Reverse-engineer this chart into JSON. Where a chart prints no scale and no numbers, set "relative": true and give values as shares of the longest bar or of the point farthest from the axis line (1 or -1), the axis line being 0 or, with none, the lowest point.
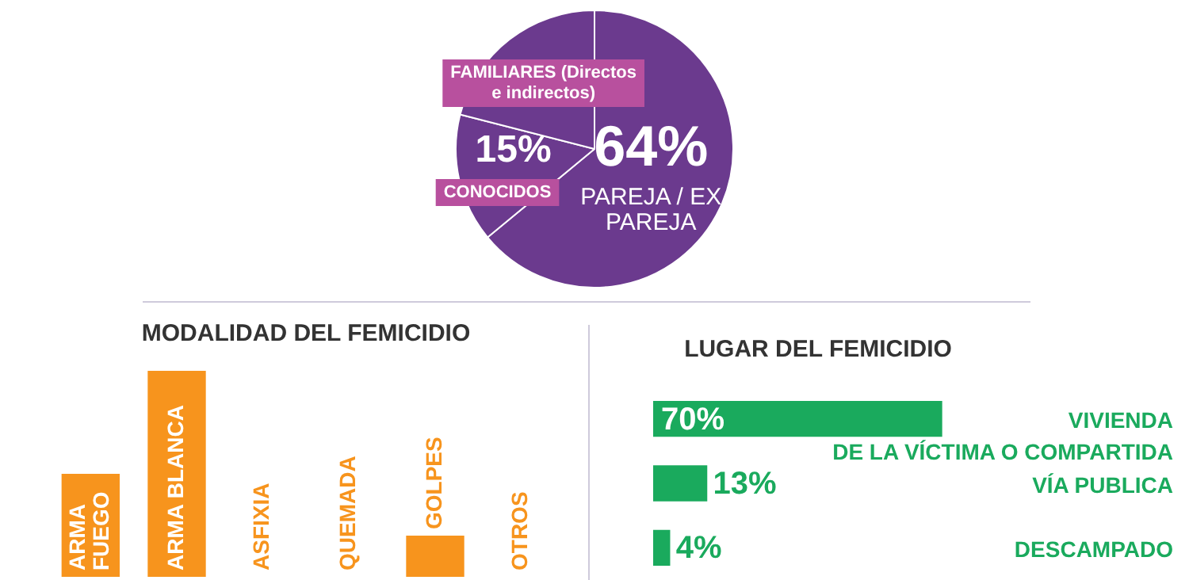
{
  "chart_data": [
    {
      "type": "pie",
      "categories": [
        "PAREJA / EX PAREJA",
        "CONOCIDOS",
        "FAMILIARES (Directos e indirectos)"
      ],
      "values": [
        64,
        15,
        21
      ],
      "colors": [
        "#6b3a8e",
        "#6b3a8e",
        "#6b3a8e"
      ],
      "value_labels": [
        "64%",
        "15%",
        null
      ]
    },
    {
      "type": "bar",
      "title": "MODALIDAD DEL FEMICIDIO",
      "categories": [
        "ARMA FUEGO",
        "ARMA BLANCA",
        "ASFIXIA",
        "QUEMADA",
        "GOLPES",
        "OTROS"
      ],
      "values": [
        0.5,
        1,
        null,
        null,
        0.2,
        null
      ],
      "color": "#f7941d",
      "relative": true
    },
    {
      "type": "bar",
      "title": "LUGAR DEL FEMICIDIO",
      "orientation": "horizontal",
      "categories": [
        "VIVIENDA DE LA VÍCTIMA O COMPARTIDA",
        "VÍA PUBLICA",
        "DESCAMPADO"
      ],
      "values": [
        70,
        13,
        4
      ],
      "color": "#1aaa5d",
      "value_labels": [
        "70%",
        "13%",
        "4%"
      ]
    }
  ]
}
